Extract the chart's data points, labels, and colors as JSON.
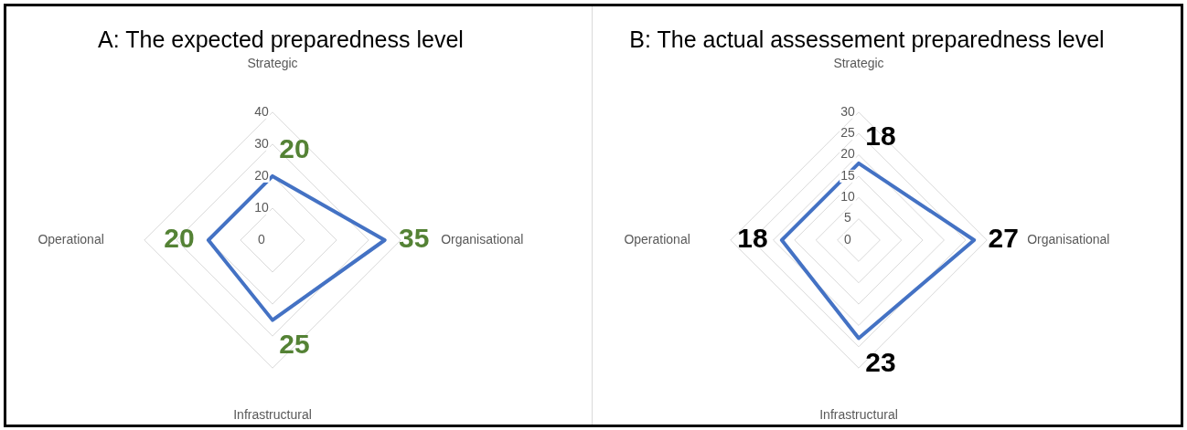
{
  "chart_data": [
    {
      "type": "radar",
      "title": "A: The expected preparedness level",
      "categories": [
        "Strategic",
        "Organisational",
        "Infrastructural",
        "Operational"
      ],
      "series": [
        {
          "color": "#4472c4",
          "values": [
            20,
            35,
            25,
            20
          ]
        }
      ],
      "ylim": [
        0,
        40
      ],
      "yticks": [
        0,
        10,
        20,
        30,
        40
      ],
      "grid": true,
      "legend": false,
      "marker": "none",
      "data_labels": true
    },
    {
      "type": "radar",
      "title": "B: The actual assessement preparedness level",
      "categories": [
        "Strategic",
        "Organisational",
        "Infrastructural",
        "Operational"
      ],
      "series": [
        {
          "color": "#4472c4",
          "values": [
            18,
            27,
            23,
            18
          ]
        }
      ],
      "ylim": [
        0,
        30
      ],
      "yticks": [
        0,
        5,
        10,
        15,
        20,
        25,
        30
      ],
      "grid": true,
      "legend": false,
      "marker": "none",
      "data_labels": true
    }
  ]
}
